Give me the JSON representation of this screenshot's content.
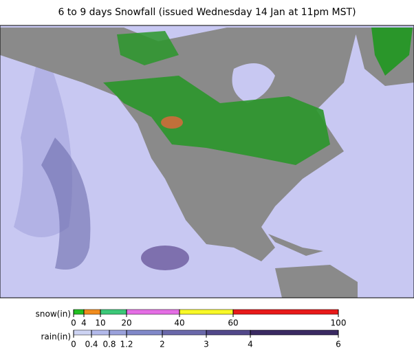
{
  "header": {
    "title": "6 to 9 days Snowfall (issued Wednesday 14 Jan at 11pm MST)"
  },
  "legend": {
    "snow": {
      "label": "snow(in)",
      "ticks": [
        0,
        4,
        10,
        20,
        40,
        60,
        100
      ],
      "colors": [
        "#22c022",
        "#f08c1e",
        "#3cc878",
        "#e46ee4",
        "#f8f828",
        "#e81a1a"
      ]
    },
    "rain": {
      "label": "rain(in)",
      "ticks": [
        0,
        0.4,
        0.8,
        1.2,
        2,
        3,
        4,
        6
      ],
      "colors": [
        "#cdd3f3",
        "#b2b9ea",
        "#9aa1db",
        "#8088c8",
        "#6a68aa",
        "#52488a",
        "#3a2a62"
      ]
    }
  }
}
